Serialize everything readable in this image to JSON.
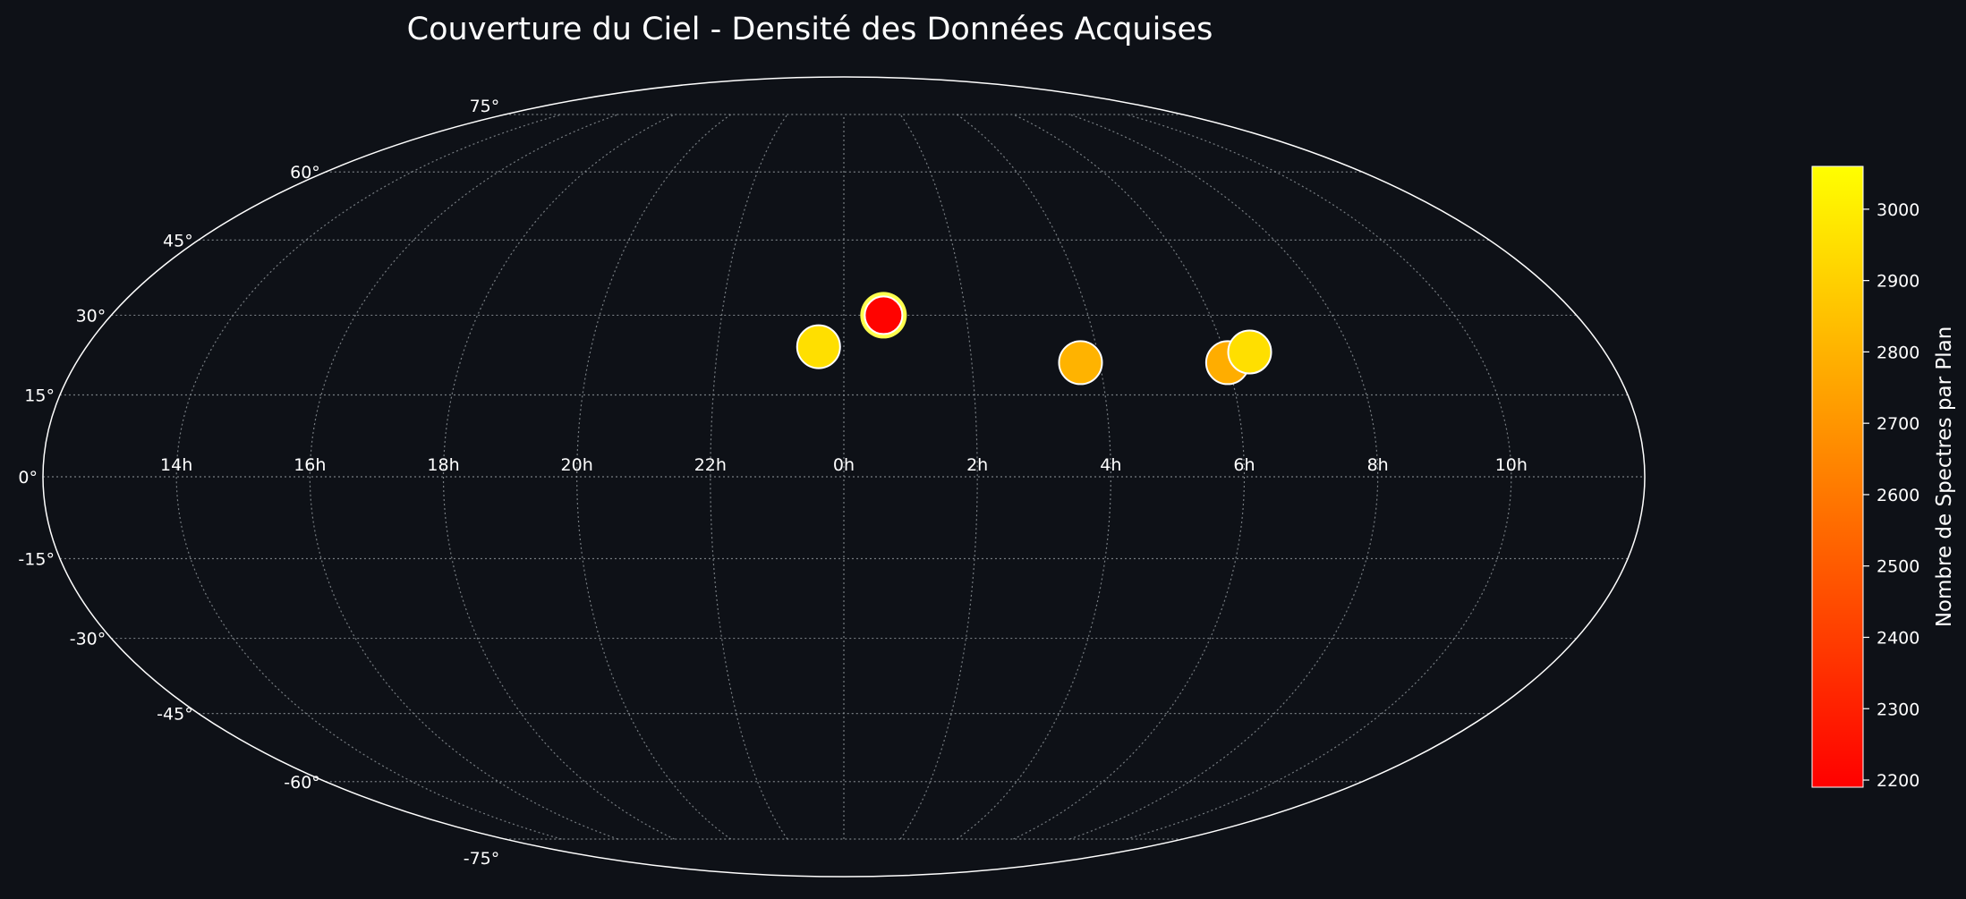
{
  "chart_data": {
    "type": "scatter",
    "projection": "mollweide",
    "title": "Couverture du Ciel - Densité des Données Acquises",
    "grid": true,
    "x_tick_labels": [
      "14h",
      "16h",
      "18h",
      "20h",
      "22h",
      "0h",
      "2h",
      "4h",
      "6h",
      "8h",
      "10h"
    ],
    "y_tick_labels": [
      "-75°",
      "-60°",
      "-45°",
      "-30°",
      "-15°",
      "0°",
      "15°",
      "30°",
      "45°",
      "60°",
      "75°"
    ],
    "colorbar": {
      "label": "Nombre de Spectres par Plan",
      "min": 2190,
      "max": 3060,
      "tick_labels": [
        "2200",
        "2300",
        "2400",
        "2500",
        "2600",
        "2700",
        "2800",
        "2900",
        "3000"
      ],
      "colors": [
        "#ff0000",
        "#ffff00"
      ],
      "placement": "right"
    },
    "points": [
      {
        "ra_h": 23.6,
        "dec": 24,
        "value": 2950
      },
      {
        "ra_h": 0.65,
        "dec": 30,
        "value": 2200,
        "highlight": true
      },
      {
        "ra_h": 3.7,
        "dec": 21,
        "value": 2800
      },
      {
        "ra_h": 6.0,
        "dec": 21,
        "value": 2780
      },
      {
        "ra_h": 6.4,
        "dec": 23,
        "value": 2950
      }
    ]
  }
}
